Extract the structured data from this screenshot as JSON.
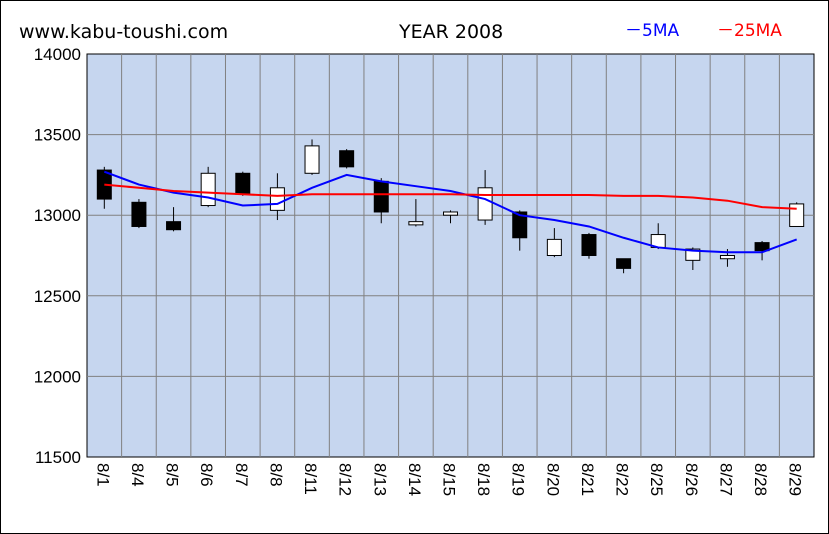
{
  "header": {
    "site": "www.kabu-toushi.com",
    "title": "YEAR 2008"
  },
  "chart_data": {
    "type": "candlestick",
    "ylim": [
      11500,
      14000
    ],
    "yticks": [
      14000,
      13500,
      13000,
      12500,
      12000,
      11500
    ],
    "grid": true,
    "legend_placement": "top-right",
    "legend": [
      {
        "label": "－5MA",
        "color": "#0000ff"
      },
      {
        "label": "－25MA",
        "color": "#ff0000"
      }
    ],
    "categories": [
      "8/1",
      "8/4",
      "8/5",
      "8/6",
      "8/7",
      "8/8",
      "8/11",
      "8/12",
      "8/13",
      "8/14",
      "8/15",
      "8/18",
      "8/19",
      "8/20",
      "8/21",
      "8/22",
      "8/25",
      "8/26",
      "8/27",
      "8/28",
      "8/29"
    ],
    "candles": [
      {
        "open": 13280,
        "high": 13300,
        "low": 13040,
        "close": 13100
      },
      {
        "open": 13080,
        "high": 13100,
        "low": 12920,
        "close": 12930
      },
      {
        "open": 12960,
        "high": 13050,
        "low": 12900,
        "close": 12910
      },
      {
        "open": 13060,
        "high": 13300,
        "low": 13050,
        "close": 13260
      },
      {
        "open": 13260,
        "high": 13270,
        "low": 13120,
        "close": 13130
      },
      {
        "open": 13030,
        "high": 13260,
        "low": 12970,
        "close": 13170
      },
      {
        "open": 13260,
        "high": 13470,
        "low": 13250,
        "close": 13430
      },
      {
        "open": 13400,
        "high": 13410,
        "low": 13290,
        "close": 13300
      },
      {
        "open": 13210,
        "high": 13230,
        "low": 12950,
        "close": 13020
      },
      {
        "open": 12940,
        "high": 13100,
        "low": 12930,
        "close": 12960
      },
      {
        "open": 13000,
        "high": 13030,
        "low": 12950,
        "close": 13020
      },
      {
        "open": 12970,
        "high": 13280,
        "low": 12940,
        "close": 13170
      },
      {
        "open": 13020,
        "high": 13030,
        "low": 12780,
        "close": 12860
      },
      {
        "open": 12750,
        "high": 12920,
        "low": 12740,
        "close": 12850
      },
      {
        "open": 12880,
        "high": 12890,
        "low": 12730,
        "close": 12750
      },
      {
        "open": 12730,
        "high": 12730,
        "low": 12640,
        "close": 12670
      },
      {
        "open": 12800,
        "high": 12950,
        "low": 12790,
        "close": 12880
      },
      {
        "open": 12720,
        "high": 12800,
        "low": 12660,
        "close": 12790
      },
      {
        "open": 12730,
        "high": 12790,
        "low": 12680,
        "close": 12750
      },
      {
        "open": 12830,
        "high": 12840,
        "low": 12720,
        "close": 12780
      },
      {
        "open": 12930,
        "high": 13080,
        "low": 12930,
        "close": 13070
      }
    ],
    "series": [
      {
        "name": "5MA",
        "color": "#0000ff",
        "values": [
          13270,
          13190,
          13140,
          13110,
          13060,
          13070,
          13170,
          13250,
          13210,
          13180,
          13150,
          13100,
          13000,
          12970,
          12930,
          12860,
          12800,
          12780,
          12770,
          12770,
          12850
        ]
      },
      {
        "name": "25MA",
        "color": "#ff0000",
        "values": [
          13190,
          13170,
          13150,
          13140,
          13130,
          13120,
          13130,
          13130,
          13130,
          13130,
          13130,
          13125,
          13125,
          13125,
          13125,
          13120,
          13120,
          13110,
          13090,
          13050,
          13040
        ]
      }
    ]
  }
}
